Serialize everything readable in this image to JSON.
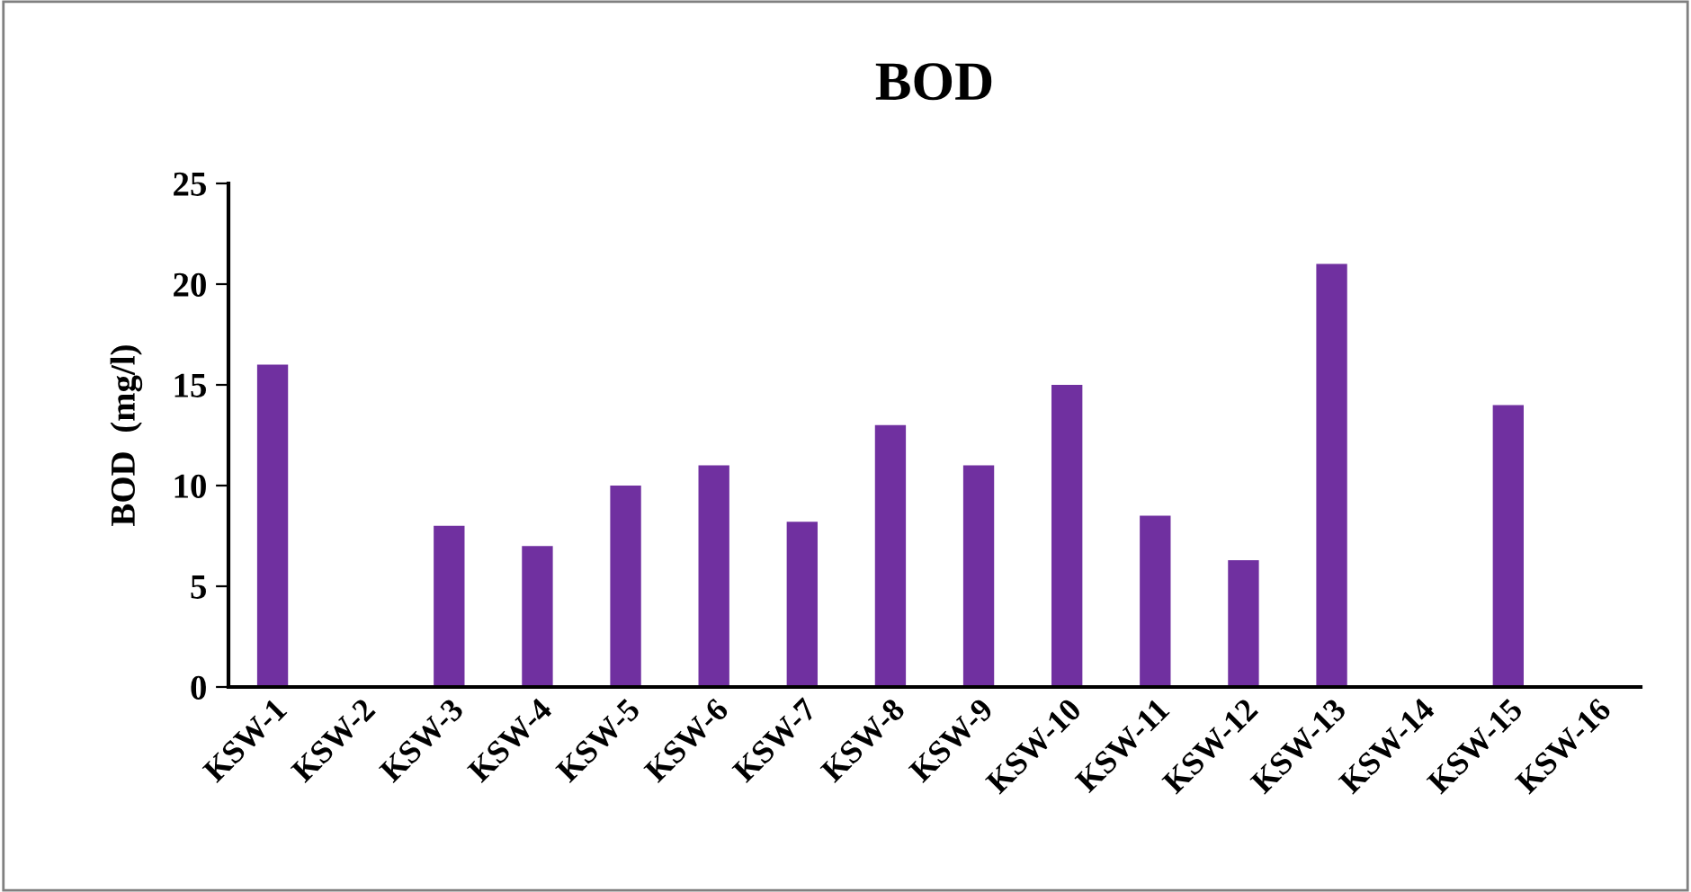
{
  "chart_data": {
    "type": "bar",
    "title": "BOD",
    "ylabel": "BOD  (mg/l)",
    "categories": [
      "KSW-1",
      "KSW-2",
      "KSW-3",
      "KSW-4",
      "KSW-5",
      "KSW-6",
      "KSW-7",
      "KSW-8",
      "KSW-9",
      "KSW-10",
      "KSW-11",
      "KSW-12",
      "KSW-13",
      "KSW-14",
      "KSW-15",
      "KSW-16"
    ],
    "values": [
      16,
      null,
      8,
      7,
      10,
      11,
      8.2,
      13,
      11,
      15,
      8.5,
      6.3,
      21,
      null,
      14,
      null
    ],
    "color": "#7030a0",
    "ylim": [
      0,
      25
    ],
    "yticks": [
      0,
      5,
      10,
      15,
      20,
      25
    ],
    "grid": false,
    "legend": false
  }
}
